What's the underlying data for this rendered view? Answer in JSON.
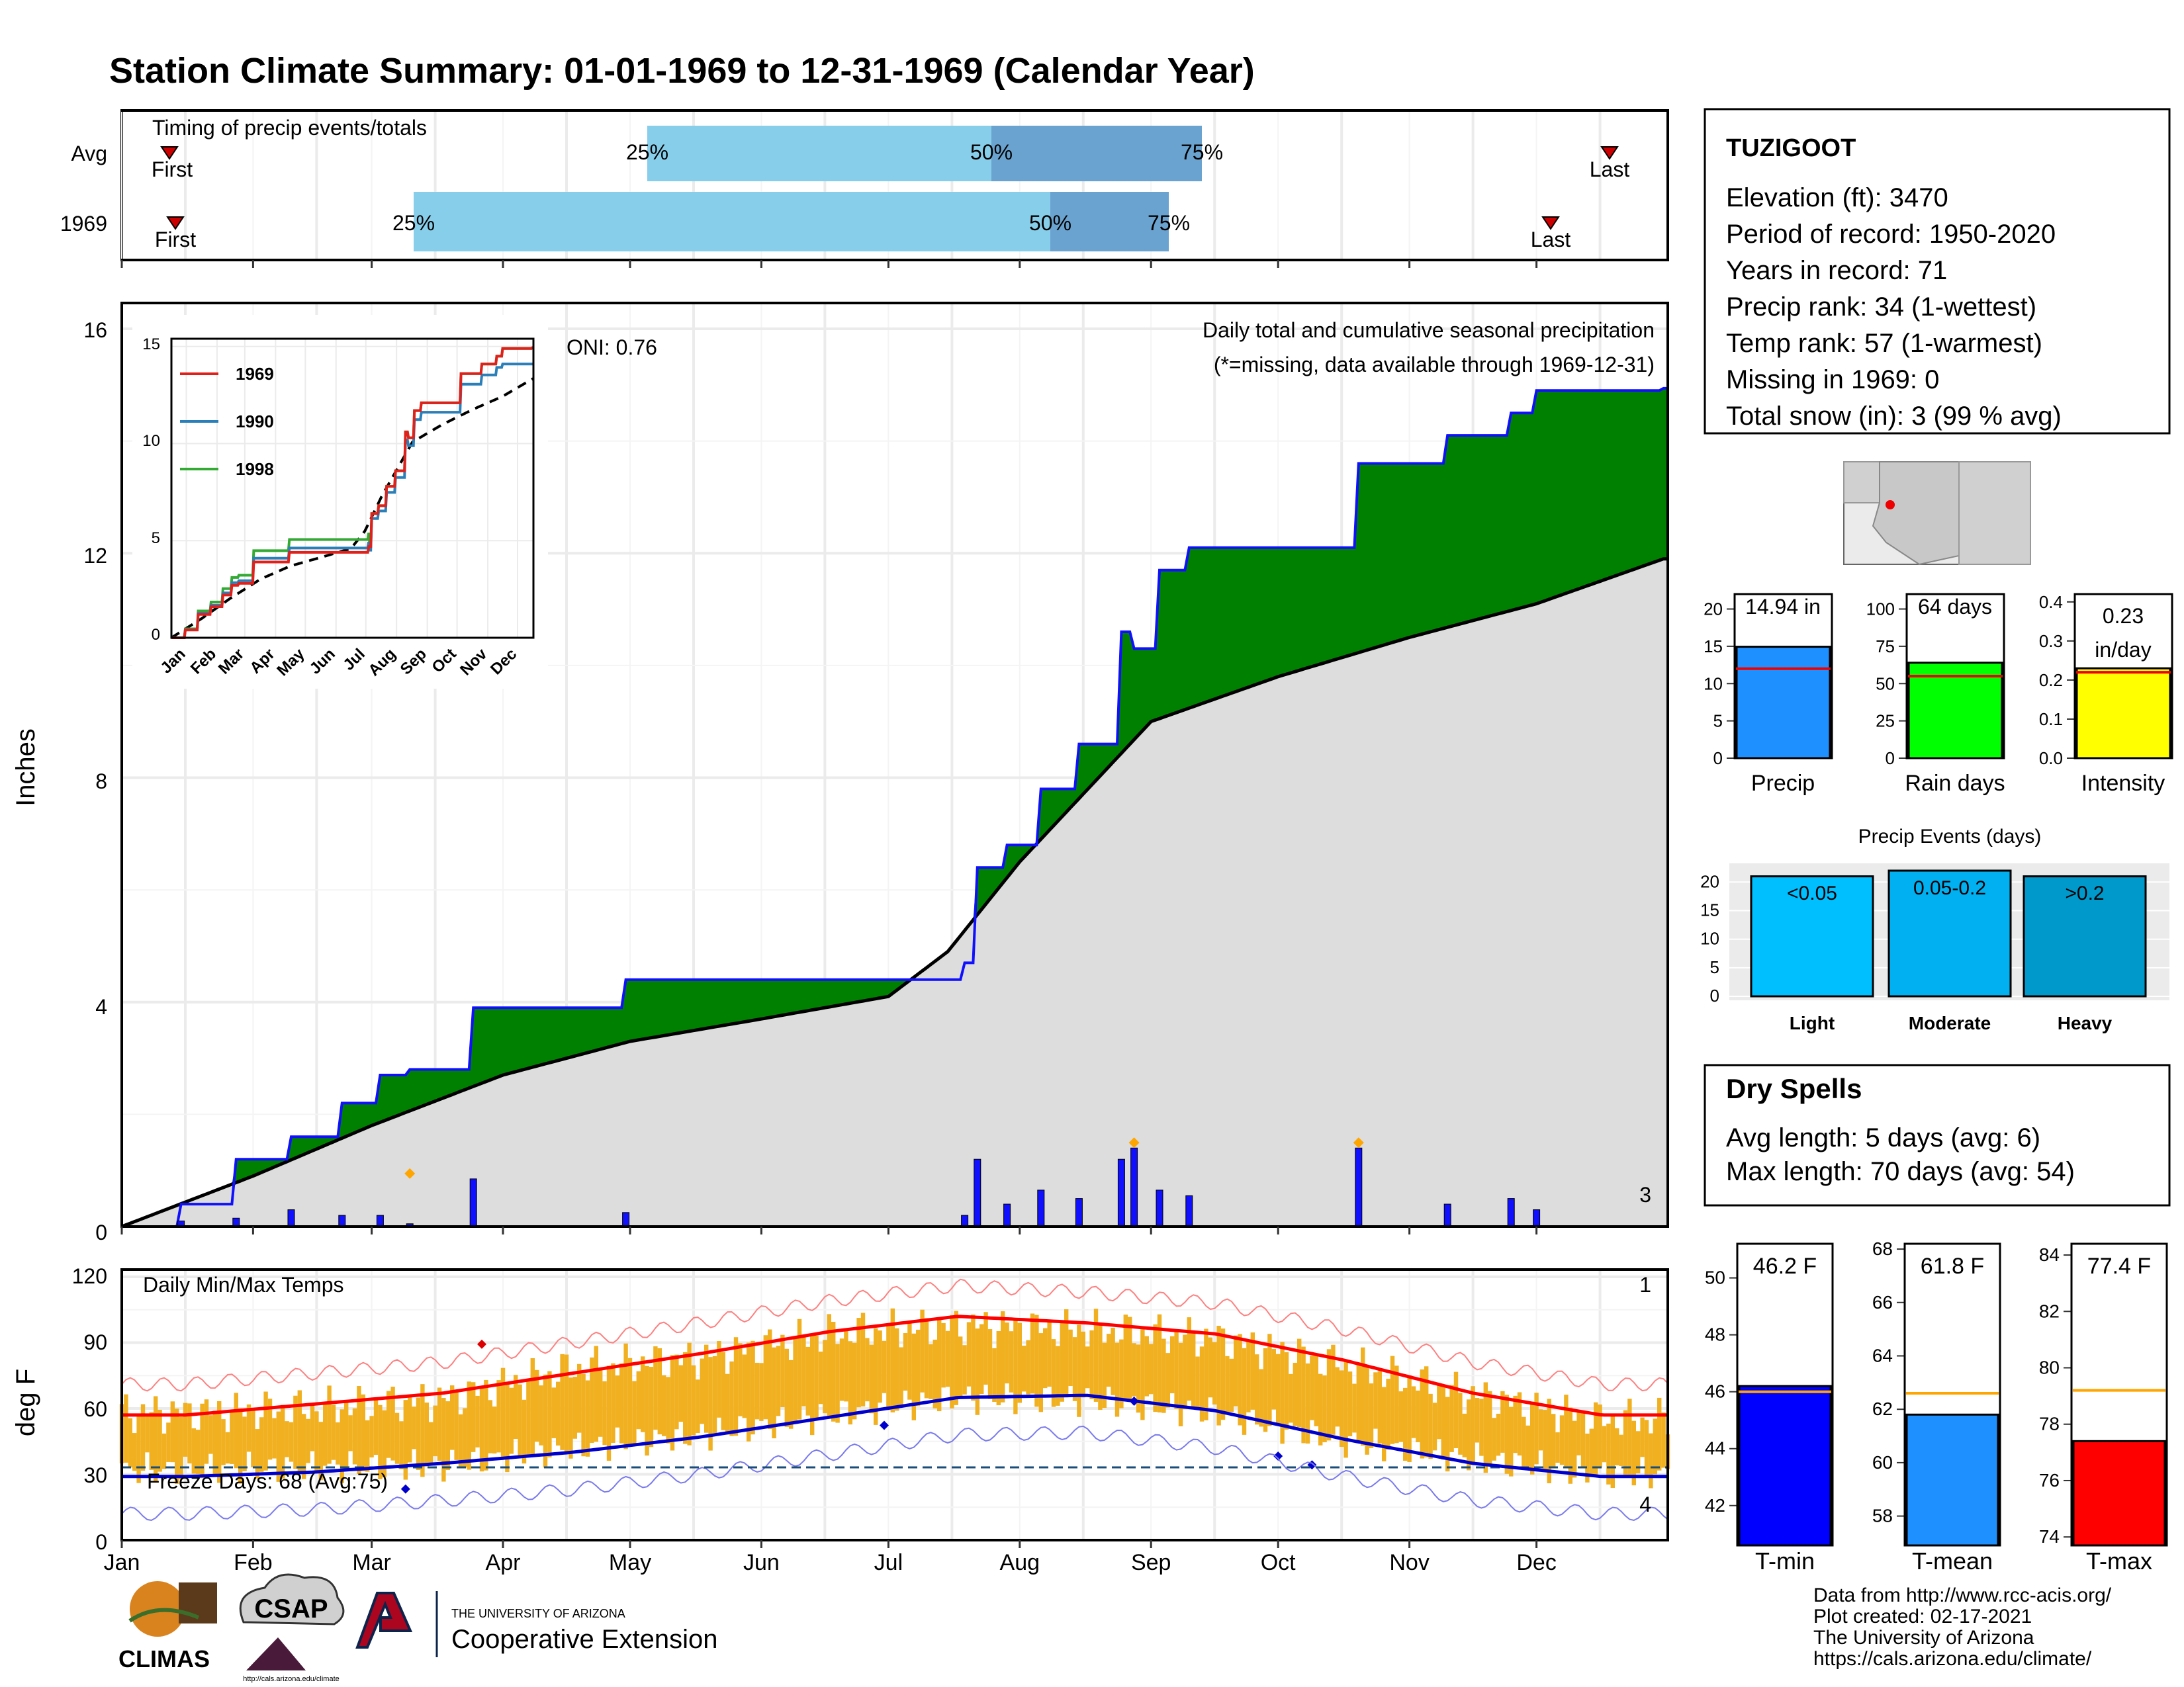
{
  "title": "Station Climate Summary: 01-01-1969 to 12-31-1969 (Calendar Year)",
  "timing": {
    "title": "Timing of precip events/totals",
    "rows": [
      {
        "label": "Avg",
        "first_label": "First",
        "last_label": "Last",
        "p25_label": "25%",
        "p50_label": "50%",
        "p75_label": "75%"
      },
      {
        "label": "1969",
        "first_label": "First",
        "last_label": "Last",
        "p25_label": "25%",
        "p50_label": "50%",
        "p75_label": "75%"
      }
    ]
  },
  "precip": {
    "title": "Daily total and cumulative seasonal precipitation",
    "subtitle": "(*=missing, data available through 1969-12-31)",
    "ylabel": "Inches",
    "y_ticks": [
      "0",
      "4",
      "8",
      "12",
      "16"
    ],
    "oni": "ONI: 0.76",
    "snow_marker_value": "3"
  },
  "inset": {
    "y_ticks": [
      "0",
      "5",
      "10",
      "15"
    ],
    "x_ticks": [
      "Jan",
      "Feb",
      "Mar",
      "Apr",
      "May",
      "Jun",
      "Jul",
      "Aug",
      "Sep",
      "Oct",
      "Nov",
      "Dec"
    ],
    "legend": [
      "1969",
      "1990",
      "1998"
    ]
  },
  "temps": {
    "title": "Daily Min/Max Temps",
    "ylabel": "deg F",
    "y_ticks": [
      "0",
      "30",
      "60",
      "90",
      "120"
    ],
    "freeze_days": "Freeze Days: 68 (Avg:75)",
    "record_high_count": "1",
    "record_low_count": "4"
  },
  "months": [
    "Jan",
    "Feb",
    "Mar",
    "Apr",
    "May",
    "Jun",
    "Jul",
    "Aug",
    "Sep",
    "Oct",
    "Nov",
    "Dec"
  ],
  "station": {
    "name": "TUZIGOOT",
    "lines": [
      "Elevation (ft): 3470",
      "Period of record: 1950-2020",
      "Years in record: 71",
      "Precip rank: 34 (1-wettest)",
      "Temp rank: 57 (1-warmest)",
      "Missing in 1969: 0",
      "Total snow (in): 3 (99 % avg)"
    ]
  },
  "stats": {
    "precip": {
      "label": "Precip",
      "value_label": "14.94 in",
      "ticks": [
        "0",
        "5",
        "10",
        "15",
        "20"
      ]
    },
    "rain_days": {
      "label": "Rain days",
      "value_label": "64 days",
      "ticks": [
        "0",
        "25",
        "50",
        "75",
        "100"
      ]
    },
    "intensity": {
      "label": "Intensity",
      "value_label_1": "0.23",
      "value_label_2": "in/day",
      "ticks": [
        "0.0",
        "0.1",
        "0.2",
        "0.3",
        "0.4"
      ]
    }
  },
  "events": {
    "title": "Precip Events (days)",
    "ticks": [
      "0",
      "5",
      "10",
      "15",
      "20"
    ],
    "bars": [
      {
        "inner": "<0.05",
        "label": "Light"
      },
      {
        "inner": "0.05-0.2",
        "label": "Moderate"
      },
      {
        "inner": ">0.2",
        "label": "Heavy"
      }
    ]
  },
  "dry": {
    "title": "Dry Spells",
    "avg": "Avg length: 5 days (avg: 6)",
    "max": "Max length: 70 days (avg: 54)"
  },
  "temp_bars": {
    "tmin": {
      "label": "T-min",
      "value_label": "46.2 F",
      "ticks": [
        "42",
        "44",
        "46",
        "48",
        "50"
      ]
    },
    "tmean": {
      "label": "T-mean",
      "value_label": "61.8 F",
      "ticks": [
        "58",
        "60",
        "62",
        "64",
        "66",
        "68"
      ]
    },
    "tmax": {
      "label": "T-max",
      "value_label": "77.4 F",
      "ticks": [
        "74",
        "76",
        "78",
        "80",
        "82",
        "84"
      ]
    }
  },
  "footer": {
    "lines": [
      "Data from http://www.rcc-acis.org/",
      "Plot created: 02-17-2021",
      "The University of Arizona",
      "https://cals.arizona.edu/climate/"
    ],
    "climas": "CLIMAS",
    "csap": "CSAP",
    "csap_url": "http://cals.arizona.edu/climate",
    "ua_small": "THE UNIVERSITY OF ARIZONA",
    "ua_big": "Cooperative Extension"
  },
  "colors": {
    "title": "#1a1a80",
    "precip_bar": "#1010ff",
    "surplus": "#008000",
    "deficit": "#8b5a14",
    "normal_fill": "#dddddd",
    "timing_light": "#87ceeb",
    "timing_dark": "#6aa3cf",
    "tmax": "#ff0000",
    "tmin": "#0000cc",
    "temp_bar": "#f0b020",
    "dry": "#a52a2a"
  },
  "chart_data": [
    {
      "type": "area",
      "title": "Daily total and cumulative seasonal precipitation",
      "ylabel": "Inches",
      "ylim": [
        0,
        16
      ],
      "series": [
        {
          "name": "1969",
          "x": [
            "Jan 1",
            "Jan 15",
            "Jan 28",
            "Feb 10",
            "Feb 22",
            "Mar 3",
            "Mar 10",
            "Mar 25",
            "Apr 30",
            "May 30",
            "Jun 30",
            "Jul 19",
            "Jul 22",
            "Jul 29",
            "Aug 6",
            "Aug 15",
            "Aug 25",
            "Aug 28",
            "Sep 3",
            "Sep 10",
            "Oct 20",
            "Nov 10",
            "Nov 25",
            "Dec 1",
            "Dec 31"
          ],
          "values": [
            0,
            0.4,
            1.2,
            1.6,
            2.2,
            2.7,
            2.8,
            3.9,
            4.4,
            4.4,
            4.4,
            4.7,
            6.4,
            6.8,
            7.8,
            8.6,
            10.6,
            10.3,
            11.7,
            12.1,
            13.6,
            14.1,
            14.5,
            14.9,
            14.94
          ]
        },
        {
          "name": "Average",
          "x": [
            "Jan 1",
            "Feb 1",
            "Mar 1",
            "Apr 1",
            "May 1",
            "Jun 1",
            "Jul 1",
            "Jul 15",
            "Aug 1",
            "Sep 1",
            "Oct 1",
            "Nov 1",
            "Dec 1",
            "Dec 31"
          ],
          "values": [
            0,
            0.9,
            1.8,
            2.7,
            3.3,
            3.7,
            4.1,
            4.9,
            6.5,
            9.0,
            9.8,
            10.5,
            11.1,
            11.9
          ]
        }
      ]
    },
    {
      "type": "bar",
      "title": "Daily precipitation",
      "x": [
        "Jan 15",
        "Jan 28",
        "Feb 10",
        "Feb 22",
        "Mar 3",
        "Mar 10",
        "Mar 25",
        "Apr 30",
        "Jul 19",
        "Jul 22",
        "Jul 29",
        "Aug 6",
        "Aug 15",
        "Aug 25",
        "Aug 28",
        "Sep 3",
        "Sep 10",
        "Oct 20",
        "Nov 10",
        "Nov 25",
        "Dec 1"
      ],
      "values": [
        0.1,
        0.15,
        0.3,
        0.2,
        0.2,
        0.05,
        0.85,
        0.25,
        0.2,
        1.2,
        0.4,
        0.65,
        0.5,
        1.2,
        1.4,
        0.65,
        0.55,
        1.4,
        0.4,
        0.5,
        0.3
      ]
    },
    {
      "type": "line",
      "title": "Daily Min/Max Temps",
      "ylabel": "deg F",
      "ylim": [
        0,
        120
      ],
      "x": [
        "Jan",
        "Feb",
        "Mar",
        "Apr",
        "May",
        "Jun",
        "Jul",
        "Aug",
        "Sep",
        "Oct",
        "Nov",
        "Dec"
      ],
      "series": [
        {
          "name": "avg max",
          "values": [
            57,
            62,
            67,
            76,
            85,
            95,
            102,
            99,
            94,
            82,
            67,
            57
          ]
        },
        {
          "name": "avg min",
          "values": [
            29,
            31,
            35,
            40,
            47,
            56,
            65,
            66,
            59,
            46,
            35,
            29
          ]
        },
        {
          "name": "1969 max",
          "values": [
            58,
            60,
            64,
            78,
            83,
            94,
            98,
            96,
            92,
            80,
            66,
            55
          ]
        },
        {
          "name": "1969 min",
          "values": [
            32,
            33,
            34,
            42,
            48,
            57,
            65,
            64,
            58,
            45,
            37,
            30
          ]
        }
      ]
    },
    {
      "type": "bar",
      "title": "Precip",
      "categories": [
        "1969"
      ],
      "values": [
        14.94
      ],
      "ylim": [
        0,
        22
      ],
      "normal": 12
    },
    {
      "type": "bar",
      "title": "Rain days",
      "categories": [
        "1969"
      ],
      "values": [
        64
      ],
      "ylim": [
        0,
        110
      ],
      "normal": 55
    },
    {
      "type": "bar",
      "title": "Intensity",
      "categories": [
        "1969"
      ],
      "values": [
        0.23
      ],
      "ylim": [
        0,
        0.42
      ],
      "normal": 0.22
    },
    {
      "type": "bar",
      "title": "Precip Events (days)",
      "categories": [
        "Light",
        "Moderate",
        "Heavy"
      ],
      "values": [
        21,
        22,
        21
      ],
      "ylim": [
        0,
        22
      ]
    },
    {
      "type": "bar",
      "title": "T-min",
      "categories": [
        "1969"
      ],
      "values": [
        46.2
      ],
      "ylim": [
        40.6,
        51.2
      ],
      "normal": 46.0
    },
    {
      "type": "bar",
      "title": "T-mean",
      "categories": [
        "1969"
      ],
      "values": [
        61.8
      ],
      "ylim": [
        56.9,
        68.2
      ],
      "normal": 62.6
    },
    {
      "type": "bar",
      "title": "T-max",
      "categories": [
        "1969"
      ],
      "values": [
        77.4
      ],
      "ylim": [
        73.7,
        84.4
      ],
      "normal": 79.2
    }
  ]
}
